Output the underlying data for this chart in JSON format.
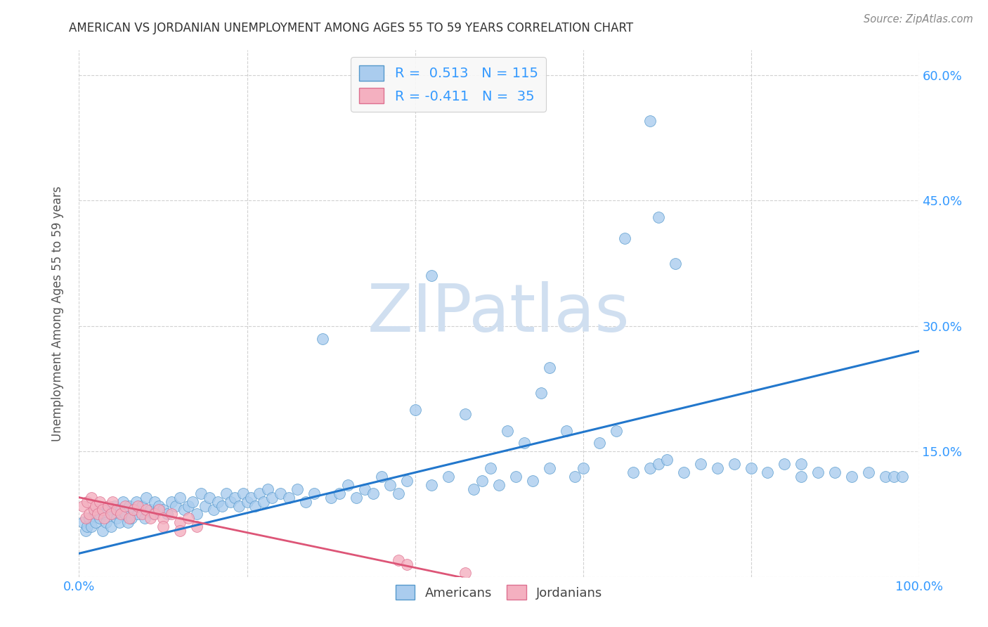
{
  "title": "AMERICAN VS JORDANIAN UNEMPLOYMENT AMONG AGES 55 TO 59 YEARS CORRELATION CHART",
  "source": "Source: ZipAtlas.com",
  "ylabel": "Unemployment Among Ages 55 to 59 years",
  "american_color": "#aaccee",
  "american_edge_color": "#5599cc",
  "jordanian_color": "#f4b0c0",
  "jordanian_edge_color": "#dd7090",
  "trendline_american_color": "#2277cc",
  "trendline_jordanian_color": "#dd5577",
  "watermark_color": "#d0dff0",
  "R_american": 0.513,
  "N_american": 115,
  "R_jordanian": -0.411,
  "N_jordanian": 35,
  "background_color": "#ffffff",
  "grid_color": "#cccccc",
  "title_color": "#333333",
  "axis_label_color": "#555555",
  "tick_label_color": "#3399ff",
  "legend_text_color": "#3399ff",
  "xlim": [
    0.0,
    1.0
  ],
  "ylim": [
    0.0,
    0.63
  ],
  "trendline_american_x0": 0.0,
  "trendline_american_y0": 0.028,
  "trendline_american_x1": 1.0,
  "trendline_american_y1": 0.27,
  "trendline_jordanian_x0": 0.0,
  "trendline_jordanian_y0": 0.095,
  "trendline_jordanian_x1": 0.5,
  "trendline_jordanian_y1": -0.01,
  "american_x": [
    0.005,
    0.008,
    0.01,
    0.012,
    0.015,
    0.018,
    0.02,
    0.022,
    0.025,
    0.028,
    0.03,
    0.032,
    0.035,
    0.038,
    0.04,
    0.042,
    0.045,
    0.048,
    0.05,
    0.052,
    0.055,
    0.058,
    0.06,
    0.062,
    0.065,
    0.068,
    0.07,
    0.075,
    0.078,
    0.08,
    0.085,
    0.088,
    0.09,
    0.095,
    0.1,
    0.105,
    0.11,
    0.115,
    0.12,
    0.125,
    0.13,
    0.135,
    0.14,
    0.145,
    0.15,
    0.155,
    0.16,
    0.165,
    0.17,
    0.175,
    0.18,
    0.185,
    0.19,
    0.195,
    0.2,
    0.205,
    0.21,
    0.215,
    0.22,
    0.225,
    0.23,
    0.24,
    0.25,
    0.26,
    0.27,
    0.28,
    0.29,
    0.3,
    0.31,
    0.32,
    0.33,
    0.34,
    0.35,
    0.36,
    0.37,
    0.38,
    0.39,
    0.4,
    0.42,
    0.44,
    0.46,
    0.47,
    0.48,
    0.49,
    0.5,
    0.51,
    0.52,
    0.53,
    0.54,
    0.55,
    0.56,
    0.58,
    0.59,
    0.6,
    0.62,
    0.64,
    0.66,
    0.68,
    0.69,
    0.7,
    0.72,
    0.74,
    0.76,
    0.78,
    0.8,
    0.82,
    0.84,
    0.86,
    0.88,
    0.9,
    0.92,
    0.94,
    0.96,
    0.97,
    0.98
  ],
  "american_y": [
    0.065,
    0.055,
    0.06,
    0.07,
    0.06,
    0.075,
    0.065,
    0.08,
    0.07,
    0.055,
    0.075,
    0.065,
    0.08,
    0.06,
    0.075,
    0.085,
    0.07,
    0.065,
    0.08,
    0.09,
    0.075,
    0.065,
    0.085,
    0.07,
    0.08,
    0.09,
    0.075,
    0.085,
    0.07,
    0.095,
    0.08,
    0.075,
    0.09,
    0.085,
    0.08,
    0.075,
    0.09,
    0.085,
    0.095,
    0.08,
    0.085,
    0.09,
    0.075,
    0.1,
    0.085,
    0.095,
    0.08,
    0.09,
    0.085,
    0.1,
    0.09,
    0.095,
    0.085,
    0.1,
    0.09,
    0.095,
    0.085,
    0.1,
    0.09,
    0.105,
    0.095,
    0.1,
    0.095,
    0.105,
    0.09,
    0.1,
    0.285,
    0.095,
    0.1,
    0.11,
    0.095,
    0.105,
    0.1,
    0.12,
    0.11,
    0.1,
    0.115,
    0.2,
    0.11,
    0.12,
    0.195,
    0.105,
    0.115,
    0.13,
    0.11,
    0.175,
    0.12,
    0.16,
    0.115,
    0.22,
    0.13,
    0.175,
    0.12,
    0.13,
    0.16,
    0.175,
    0.125,
    0.13,
    0.135,
    0.14,
    0.125,
    0.135,
    0.13,
    0.135,
    0.13,
    0.125,
    0.135,
    0.12,
    0.125,
    0.125,
    0.12,
    0.125,
    0.12,
    0.12,
    0.12
  ],
  "american_outliers_x": [
    0.68,
    0.69,
    0.65,
    0.71,
    0.42,
    0.56,
    0.86
  ],
  "american_outliers_y": [
    0.545,
    0.43,
    0.405,
    0.375,
    0.36,
    0.25,
    0.135
  ],
  "jordanian_x": [
    0.005,
    0.008,
    0.01,
    0.012,
    0.015,
    0.018,
    0.02,
    0.022,
    0.025,
    0.028,
    0.03,
    0.035,
    0.038,
    0.04,
    0.045,
    0.05,
    0.055,
    0.06,
    0.065,
    0.07,
    0.075,
    0.08,
    0.085,
    0.09,
    0.095,
    0.1,
    0.11,
    0.12,
    0.13,
    0.14,
    0.38,
    0.39,
    0.46,
    0.12,
    0.1
  ],
  "jordanian_y": [
    0.085,
    0.07,
    0.09,
    0.075,
    0.095,
    0.08,
    0.085,
    0.075,
    0.09,
    0.08,
    0.07,
    0.085,
    0.075,
    0.09,
    0.08,
    0.075,
    0.085,
    0.07,
    0.08,
    0.085,
    0.075,
    0.08,
    0.07,
    0.075,
    0.08,
    0.07,
    0.075,
    0.065,
    0.07,
    0.06,
    0.02,
    0.015,
    0.005,
    0.055,
    0.06
  ]
}
